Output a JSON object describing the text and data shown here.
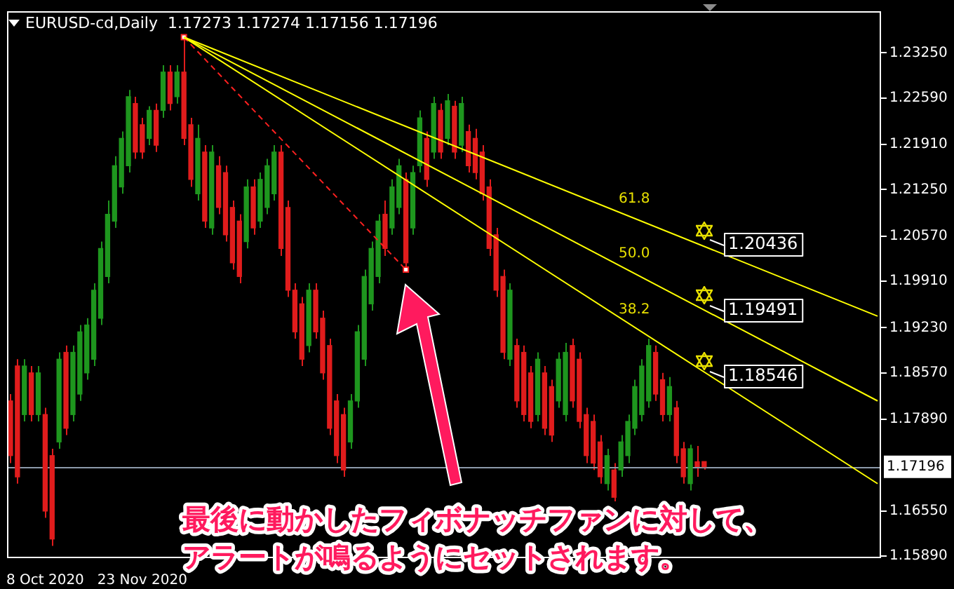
{
  "chart_data": {
    "type": "candlestick",
    "title": "EURUSD-cd,Daily  1.17273 1.17274 1.17156 1.17196",
    "categories": [
      null,
      null,
      null,
      null,
      null,
      "8 Oct 2020",
      null,
      null,
      null,
      null,
      null,
      null,
      null,
      null,
      null,
      null,
      null,
      null,
      null,
      "23 Nov 2020",
      null,
      null,
      null,
      null,
      null,
      null,
      null,
      null,
      null,
      null,
      null,
      null,
      null,
      null,
      null,
      null,
      null,
      null,
      null,
      null,
      null,
      null,
      null,
      null,
      null,
      null,
      null,
      null,
      null,
      null,
      null,
      null,
      null,
      null,
      null,
      null,
      null,
      null,
      null,
      null,
      null,
      null,
      null,
      null,
      null,
      null,
      null,
      null,
      null,
      null,
      null,
      null,
      null,
      null,
      null,
      null,
      null,
      null,
      null,
      null,
      null,
      null,
      null,
      null,
      null,
      null,
      null,
      null,
      null,
      null,
      null,
      null,
      null,
      null,
      null,
      null,
      null,
      null,
      null,
      null,
      null,
      null,
      null,
      null,
      null,
      null,
      null,
      null,
      null,
      null,
      null,
      null,
      null,
      null,
      null,
      null,
      null,
      null,
      null,
      null,
      null,
      null,
      null,
      null,
      null,
      null
    ],
    "ohlc": [
      [
        1.1816,
        1.1826,
        1.1725,
        1.1736
      ],
      [
        1.1867,
        1.1877,
        1.1695,
        1.1705
      ],
      [
        1.1796,
        1.1877,
        1.1786,
        1.1867
      ],
      [
        1.1857,
        1.1867,
        1.1786,
        1.1796
      ],
      [
        1.1796,
        1.1867,
        1.1786,
        1.1857
      ],
      [
        1.1796,
        1.1806,
        1.1645,
        1.1655
      ],
      [
        1.1736,
        1.1746,
        1.1604,
        1.1614
      ],
      [
        1.1756,
        1.1887,
        1.1746,
        1.1877
      ],
      [
        1.1887,
        1.1897,
        1.1766,
        1.1776
      ],
      [
        1.1796,
        1.1897,
        1.1786,
        1.1887
      ],
      [
        1.1826,
        1.1927,
        1.1816,
        1.1917
      ],
      [
        1.1857,
        1.1937,
        1.1847,
        1.1927
      ],
      [
        1.1877,
        1.1988,
        1.1867,
        1.1978
      ],
      [
        1.1937,
        1.2049,
        1.1927,
        1.2039
      ],
      [
        1.1998,
        1.2109,
        1.1988,
        1.2089
      ],
      [
        1.2079,
        1.2174,
        1.2069,
        1.216
      ],
      [
        1.2129,
        1.221,
        1.2119,
        1.22
      ],
      [
        1.216,
        1.2271,
        1.215,
        1.2261
      ],
      [
        1.2251,
        1.2261,
        1.217,
        1.218
      ],
      [
        1.222,
        1.223,
        1.217,
        1.218
      ],
      [
        1.22,
        1.2247,
        1.219,
        1.2241
      ],
      [
        1.2241,
        1.2251,
        1.218,
        1.219
      ],
      [
        1.2241,
        1.2307,
        1.223,
        1.2297
      ],
      [
        1.2297,
        1.2307,
        1.2241,
        1.2251
      ],
      [
        1.2261,
        1.2307,
        1.2251,
        1.2297
      ],
      [
        1.2297,
        1.2348,
        1.219,
        1.22
      ],
      [
        1.222,
        1.223,
        1.2129,
        1.214
      ],
      [
        1.2119,
        1.222,
        1.2109,
        1.22
      ],
      [
        1.218,
        1.219,
        1.2069,
        1.2079
      ],
      [
        1.2069,
        1.219,
        1.2059,
        1.218
      ],
      [
        1.216,
        1.2174,
        1.2089,
        1.2099
      ],
      [
        1.215,
        1.216,
        1.2049,
        1.2059
      ],
      [
        1.2099,
        1.2109,
        1.2008,
        1.2018
      ],
      [
        1.2079,
        1.2089,
        1.1988,
        1.1998
      ],
      [
        1.2049,
        1.214,
        1.2039,
        1.2129
      ],
      [
        1.2129,
        1.214,
        1.2059,
        1.2069
      ],
      [
        1.2079,
        1.215,
        1.2069,
        1.214
      ],
      [
        1.2099,
        1.217,
        1.2089,
        1.216
      ],
      [
        1.2119,
        1.219,
        1.2109,
        1.218
      ],
      [
        1.218,
        1.219,
        1.2028,
        1.2039
      ],
      [
        1.2099,
        1.2109,
        1.1968,
        1.1978
      ],
      [
        1.1978,
        1.1988,
        1.1907,
        1.1917
      ],
      [
        1.1958,
        1.1968,
        1.1867,
        1.1877
      ],
      [
        1.1897,
        1.1988,
        1.1887,
        1.1978
      ],
      [
        1.1978,
        1.1988,
        1.1907,
        1.1917
      ],
      [
        1.1937,
        1.1948,
        1.1847,
        1.1857
      ],
      [
        1.1897,
        1.1907,
        1.1766,
        1.1776
      ],
      [
        1.1816,
        1.1826,
        1.1725,
        1.1736
      ],
      [
        1.1796,
        1.1806,
        1.1705,
        1.1715
      ],
      [
        1.1756,
        1.1826,
        1.1746,
        1.1816
      ],
      [
        1.1816,
        1.1927,
        1.1806,
        1.1917
      ],
      [
        1.1877,
        1.2008,
        1.1867,
        1.1998
      ],
      [
        1.1958,
        1.2049,
        1.1948,
        1.2039
      ],
      [
        1.1998,
        1.2089,
        1.1988,
        1.2079
      ],
      [
        1.2089,
        1.2109,
        1.2028,
        1.2039
      ],
      [
        1.2069,
        1.214,
        1.2059,
        1.2129
      ],
      [
        1.2099,
        1.217,
        1.2089,
        1.216
      ],
      [
        1.214,
        1.215,
        1.2008,
        1.2018
      ],
      [
        1.2069,
        1.216,
        1.2059,
        1.215
      ],
      [
        1.216,
        1.2241,
        1.215,
        1.223
      ],
      [
        1.22,
        1.221,
        1.2129,
        1.214
      ],
      [
        1.218,
        1.2261,
        1.217,
        1.2251
      ],
      [
        1.2241,
        1.2251,
        1.217,
        1.218
      ],
      [
        1.22,
        1.2265,
        1.219,
        1.2255
      ],
      [
        1.2247,
        1.2255,
        1.217,
        1.218
      ],
      [
        1.219,
        1.2261,
        1.218,
        1.2251
      ],
      [
        1.221,
        1.222,
        1.215,
        1.216
      ],
      [
        1.22,
        1.2214,
        1.214,
        1.215
      ],
      [
        1.218,
        1.219,
        1.2109,
        1.2119
      ],
      [
        1.2129,
        1.214,
        1.2028,
        1.2039
      ],
      [
        1.2059,
        1.2069,
        1.1968,
        1.1978
      ],
      [
        1.1998,
        1.2008,
        1.1877,
        1.1887
      ],
      [
        1.1877,
        1.1988,
        1.1867,
        1.1978
      ],
      [
        1.1897,
        1.1907,
        1.1806,
        1.1816
      ],
      [
        1.1887,
        1.1897,
        1.1786,
        1.1796
      ],
      [
        1.1857,
        1.1867,
        1.1776,
        1.1786
      ],
      [
        1.1796,
        1.1887,
        1.1786,
        1.1877
      ],
      [
        1.1857,
        1.1867,
        1.1766,
        1.1776
      ],
      [
        1.1837,
        1.1847,
        1.1756,
        1.1766
      ],
      [
        1.1816,
        1.1887,
        1.1806,
        1.1877
      ],
      [
        1.1796,
        1.1901,
        1.1786,
        1.1887
      ],
      [
        1.1897,
        1.1907,
        1.1806,
        1.1816
      ],
      [
        1.1877,
        1.1887,
        1.1776,
        1.1786
      ],
      [
        1.1796,
        1.1806,
        1.1725,
        1.1736
      ],
      [
        1.1786,
        1.1796,
        1.1715,
        1.1725
      ],
      [
        1.1756,
        1.1766,
        1.1695,
        1.1705
      ],
      [
        1.1695,
        1.1746,
        1.1685,
        1.1736
      ],
      [
        1.1715,
        1.1725,
        1.1669,
        1.1675
      ],
      [
        1.1715,
        1.1766,
        1.1705,
        1.1756
      ],
      [
        1.1736,
        1.1796,
        1.1725,
        1.1786
      ],
      [
        1.1776,
        1.1847,
        1.1766,
        1.1837
      ],
      [
        1.1796,
        1.1877,
        1.1786,
        1.1867
      ],
      [
        1.1816,
        1.1907,
        1.1806,
        1.1897
      ],
      [
        1.1887,
        1.1897,
        1.1816,
        1.1826
      ],
      [
        1.1847,
        1.1857,
        1.1786,
        1.1796
      ],
      [
        1.1796,
        1.1851,
        1.1786,
        1.1837
      ],
      [
        1.1806,
        1.1816,
        1.1725,
        1.1736
      ],
      [
        1.1746,
        1.1756,
        1.1695,
        1.1705
      ],
      [
        1.1695,
        1.1752,
        1.1685,
        1.1746
      ],
      [
        1.1727,
        1.175,
        1.1705,
        1.172
      ],
      [
        1.17273,
        1.17274,
        1.17156,
        1.17196
      ],
      null,
      null,
      null,
      null,
      null,
      null,
      null,
      null,
      null,
      null,
      null,
      null,
      null,
      null,
      null,
      null,
      null,
      null,
      null,
      null,
      null,
      null,
      null,
      null,
      null
    ],
    "colors": [
      "#e01c1c",
      "#e01c1c",
      "#1e961e",
      "#e01c1c",
      "#1e961e",
      "#e01c1c",
      "#e01c1c",
      "#1e961e",
      "#e01c1c",
      "#1e961e",
      "#1e961e",
      "#1e961e",
      "#1e961e",
      "#1e961e",
      "#1e961e",
      "#1e961e",
      "#1e961e",
      "#1e961e",
      "#e01c1c",
      "#e01c1c",
      "#1e961e",
      "#e01c1c",
      "#1e961e",
      "#e01c1c",
      "#1e961e",
      "#e01c1c",
      "#e01c1c",
      "#1e961e",
      "#e01c1c",
      "#1e961e",
      "#e01c1c",
      "#e01c1c",
      "#e01c1c",
      "#e01c1c",
      "#1e961e",
      "#e01c1c",
      "#1e961e",
      "#1e961e",
      "#1e961e",
      "#e01c1c",
      "#e01c1c",
      "#e01c1c",
      "#e01c1c",
      "#1e961e",
      "#e01c1c",
      "#e01c1c",
      "#e01c1c",
      "#e01c1c",
      "#e01c1c",
      "#1e961e",
      "#1e961e",
      "#1e961e",
      "#1e961e",
      "#1e961e",
      "#e01c1c",
      "#1e961e",
      "#1e961e",
      "#e01c1c",
      "#1e961e",
      "#1e961e",
      "#e01c1c",
      "#1e961e",
      "#e01c1c",
      "#1e961e",
      "#e01c1c",
      "#1e961e",
      "#e01c1c",
      "#e01c1c",
      "#e01c1c",
      "#e01c1c",
      "#e01c1c",
      "#e01c1c",
      "#1e961e",
      "#e01c1c",
      "#e01c1c",
      "#e01c1c",
      "#1e961e",
      "#e01c1c",
      "#e01c1c",
      "#1e961e",
      "#1e961e",
      "#e01c1c",
      "#e01c1c",
      "#e01c1c",
      "#e01c1c",
      "#e01c1c",
      "#1e961e",
      "#e01c1c",
      "#1e961e",
      "#1e961e",
      "#1e961e",
      "#1e961e",
      "#1e961e",
      "#e01c1c",
      "#e01c1c",
      "#1e961e",
      "#e01c1c",
      "#e01c1c",
      "#1e961e",
      "#e01c1c",
      "#e01c1c",
      null,
      null,
      null,
      null,
      null,
      null,
      null,
      null,
      null,
      null,
      null,
      null,
      null,
      null,
      null,
      null,
      null,
      null,
      null,
      null,
      null,
      null,
      null,
      null,
      null
    ],
    "series": [
      {
        "type": "line",
        "color": "#ffff00",
        "values": [
          null,
          null,
          null,
          null,
          null,
          null,
          null,
          null,
          null,
          null,
          null,
          null,
          null,
          null,
          null,
          null,
          null,
          null,
          null,
          null,
          null,
          null,
          null,
          null,
          null,
          1.2348,
          null,
          null,
          null,
          null,
          null,
          null,
          null,
          null,
          null,
          null,
          null,
          null,
          null,
          null,
          null,
          null,
          null,
          null,
          null,
          null,
          null,
          null,
          null,
          null,
          null,
          null,
          null,
          null,
          null,
          null,
          null,
          null,
          null,
          null,
          null,
          null,
          null,
          null,
          null,
          null,
          null,
          null,
          null,
          null,
          null,
          null,
          null,
          null,
          null,
          null,
          null,
          null,
          null,
          null,
          null,
          null,
          null,
          null,
          null,
          null,
          null,
          null,
          null,
          null,
          null,
          null,
          null,
          null,
          null,
          null,
          null,
          null,
          null,
          null,
          null,
          null,
          null,
          null,
          null,
          null,
          null,
          null,
          null,
          null,
          null,
          null,
          null,
          null,
          null,
          null,
          null,
          null,
          null,
          null,
          null,
          null,
          null,
          null,
          null,
          1.194
        ]
      },
      {
        "type": "line",
        "color": "#ffff00",
        "values": [
          null,
          null,
          null,
          null,
          null,
          null,
          null,
          null,
          null,
          null,
          null,
          null,
          null,
          null,
          null,
          null,
          null,
          null,
          null,
          null,
          null,
          null,
          null,
          null,
          null,
          1.2348,
          null,
          null,
          null,
          null,
          null,
          null,
          null,
          null,
          null,
          null,
          null,
          null,
          null,
          null,
          null,
          null,
          null,
          null,
          null,
          null,
          null,
          null,
          null,
          null,
          null,
          null,
          null,
          null,
          null,
          null,
          null,
          null,
          null,
          null,
          null,
          null,
          null,
          null,
          null,
          null,
          null,
          null,
          null,
          null,
          null,
          null,
          null,
          null,
          null,
          null,
          null,
          null,
          null,
          null,
          null,
          null,
          null,
          null,
          null,
          null,
          null,
          null,
          null,
          null,
          null,
          null,
          null,
          null,
          null,
          null,
          null,
          null,
          null,
          null,
          null,
          null,
          null,
          null,
          null,
          null,
          null,
          null,
          null,
          null,
          null,
          null,
          null,
          null,
          null,
          null,
          null,
          null,
          null,
          null,
          null,
          null,
          null,
          null,
          null,
          1.1816
        ]
      },
      {
        "type": "line",
        "color": "#ffff00",
        "values": [
          null,
          null,
          null,
          null,
          null,
          null,
          null,
          null,
          null,
          null,
          null,
          null,
          null,
          null,
          null,
          null,
          null,
          null,
          null,
          null,
          null,
          null,
          null,
          null,
          null,
          1.2348,
          null,
          null,
          null,
          null,
          null,
          null,
          null,
          null,
          null,
          null,
          null,
          null,
          null,
          null,
          null,
          null,
          null,
          null,
          null,
          null,
          null,
          null,
          null,
          null,
          null,
          null,
          null,
          null,
          null,
          null,
          null,
          null,
          null,
          null,
          null,
          null,
          null,
          null,
          null,
          null,
          null,
          null,
          null,
          null,
          null,
          null,
          null,
          null,
          null,
          null,
          null,
          null,
          null,
          null,
          null,
          null,
          null,
          null,
          null,
          null,
          null,
          null,
          null,
          null,
          null,
          null,
          null,
          null,
          null,
          null,
          null,
          null,
          null,
          null,
          null,
          null,
          null,
          null,
          null,
          null,
          null,
          null,
          null,
          null,
          null,
          null,
          null,
          null,
          null,
          null,
          null,
          null,
          null,
          null,
          null,
          null,
          null,
          null,
          null,
          1.1695
        ]
      },
      {
        "type": "line",
        "color": "#ff2020",
        "line_style": "dashed",
        "marker": "square",
        "values": [
          null,
          null,
          null,
          null,
          null,
          null,
          null,
          null,
          null,
          null,
          null,
          null,
          null,
          null,
          null,
          null,
          null,
          null,
          null,
          null,
          null,
          null,
          null,
          null,
          null,
          1.2348,
          null,
          null,
          null,
          null,
          null,
          null,
          null,
          null,
          null,
          null,
          null,
          null,
          null,
          null,
          null,
          null,
          null,
          null,
          null,
          null,
          null,
          null,
          null,
          null,
          null,
          null,
          null,
          null,
          null,
          null,
          null,
          1.2008,
          null,
          null,
          null,
          null,
          null,
          null,
          null,
          null,
          null,
          null,
          null,
          null,
          null,
          null,
          null,
          null,
          null,
          null,
          null,
          null,
          null,
          null,
          null,
          null,
          null,
          null,
          null,
          null,
          null,
          null,
          null,
          null,
          null,
          null,
          null,
          null,
          null,
          null,
          null,
          null,
          null,
          null,
          null,
          null,
          null,
          null,
          null,
          null,
          null,
          null,
          null,
          null,
          null,
          null,
          null,
          null,
          null,
          null,
          null,
          null,
          null,
          null,
          null,
          null,
          null,
          null,
          null,
          null
        ]
      }
    ],
    "ylim": [
      1.1586,
      1.2386
    ],
    "yticks": [
      {
        "value": 1.1589,
        "label": "1.15890"
      },
      {
        "value": 1.1655,
        "label": "1.16550"
      },
      {
        "value": 1.1789,
        "label": "1.17890"
      },
      {
        "value": 1.1857,
        "label": "1.18570"
      },
      {
        "value": 1.1923,
        "label": "1.19230"
      },
      {
        "value": 1.1991,
        "label": "1.19910"
      },
      {
        "value": 1.2057,
        "label": "1.20570"
      },
      {
        "value": 1.2125,
        "label": "1.21250"
      },
      {
        "value": 1.2191,
        "label": "1.21910"
      },
      {
        "value": 1.2259,
        "label": "1.22590"
      },
      {
        "value": 1.2325,
        "label": "1.23250"
      }
    ],
    "ref_lines": [
      {
        "axis": "y",
        "value": 1.17196,
        "label": "1.17196",
        "color": "#8c9aab"
      }
    ],
    "annotations": [
      "最後に動かしたフィボナッチファンに対して、アラートが鳴るようにセットされます。",
      "61.8",
      "50.0",
      "38.2",
      "1.20436",
      "1.19491",
      "1.18546"
    ],
    "legend": false,
    "grid": false
  }
}
